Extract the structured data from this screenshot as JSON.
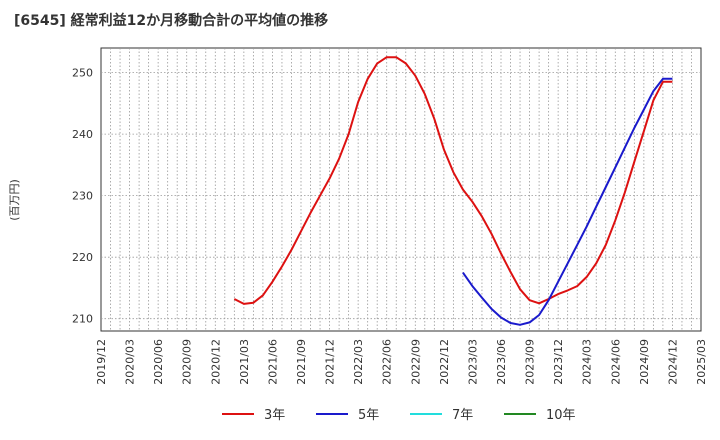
{
  "chart_data": {
    "type": "line",
    "title": "[6545]  経常利益12か月移動合計の平均値の推移",
    "ylabel": "(百万円)",
    "xlabel": "",
    "x_ticks": [
      "2019/12",
      "2020/03",
      "2020/06",
      "2020/09",
      "2020/12",
      "2021/03",
      "2021/06",
      "2021/09",
      "2021/12",
      "2022/03",
      "2022/06",
      "2022/09",
      "2022/12",
      "2023/03",
      "2023/06",
      "2023/09",
      "2023/12",
      "2024/03",
      "2024/06",
      "2024/09",
      "2024/12",
      "2025/03"
    ],
    "y_ticks": [
      210,
      220,
      230,
      240,
      250
    ],
    "ylim": [
      208,
      254
    ],
    "grid": true,
    "legend_position": "bottom",
    "series": [
      {
        "name": "3年",
        "color": "#dd1111",
        "x": [
          "2021/02",
          "2021/03",
          "2021/04",
          "2021/05",
          "2021/06",
          "2021/07",
          "2021/08",
          "2021/09",
          "2021/10",
          "2021/11",
          "2021/12",
          "2022/01",
          "2022/02",
          "2022/03",
          "2022/04",
          "2022/05",
          "2022/06",
          "2022/07",
          "2022/08",
          "2022/09",
          "2022/10",
          "2022/11",
          "2022/12",
          "2023/01",
          "2023/02",
          "2023/03",
          "2023/04",
          "2023/05",
          "2023/06",
          "2023/07",
          "2023/08",
          "2023/09",
          "2023/10",
          "2023/11",
          "2023/12",
          "2024/01",
          "2024/02",
          "2024/03",
          "2024/04",
          "2024/05",
          "2024/06",
          "2024/07",
          "2024/08",
          "2024/09",
          "2024/10",
          "2024/11",
          "2024/12"
        ],
        "values": [
          213.2,
          212.4,
          212.6,
          213.8,
          216.0,
          218.5,
          221.2,
          224.2,
          227.2,
          230.0,
          232.8,
          236.0,
          240.0,
          245.2,
          249.0,
          251.5,
          252.5,
          252.5,
          251.5,
          249.5,
          246.5,
          242.5,
          237.5,
          233.8,
          231.0,
          229.0,
          226.6,
          223.8,
          220.6,
          217.6,
          214.8,
          213.0,
          212.5,
          213.2,
          214.0,
          214.6,
          215.3,
          216.8,
          219.0,
          222.0,
          226.0,
          230.5,
          235.5,
          240.5,
          245.5,
          248.5,
          248.5
        ]
      },
      {
        "name": "5年",
        "color": "#1a1acc",
        "x": [
          "2023/02",
          "2023/03",
          "2023/04",
          "2023/05",
          "2023/06",
          "2023/07",
          "2023/08",
          "2023/09",
          "2023/10",
          "2023/11",
          "2023/12",
          "2024/01",
          "2024/02",
          "2024/03",
          "2024/04",
          "2024/05",
          "2024/06",
          "2024/07",
          "2024/08",
          "2024/09",
          "2024/10",
          "2024/11",
          "2024/12"
        ],
        "values": [
          217.5,
          215.3,
          213.4,
          211.6,
          210.2,
          209.3,
          209.0,
          209.4,
          210.6,
          213.0,
          216.0,
          219.0,
          222.0,
          225.0,
          228.2,
          231.4,
          234.6,
          237.8,
          241.0,
          244.0,
          247.0,
          249.0,
          249.0
        ]
      },
      {
        "name": "7年",
        "color": "#22dddd",
        "x": [],
        "values": []
      },
      {
        "name": "10年",
        "color": "#228822",
        "x": [],
        "values": []
      }
    ]
  }
}
